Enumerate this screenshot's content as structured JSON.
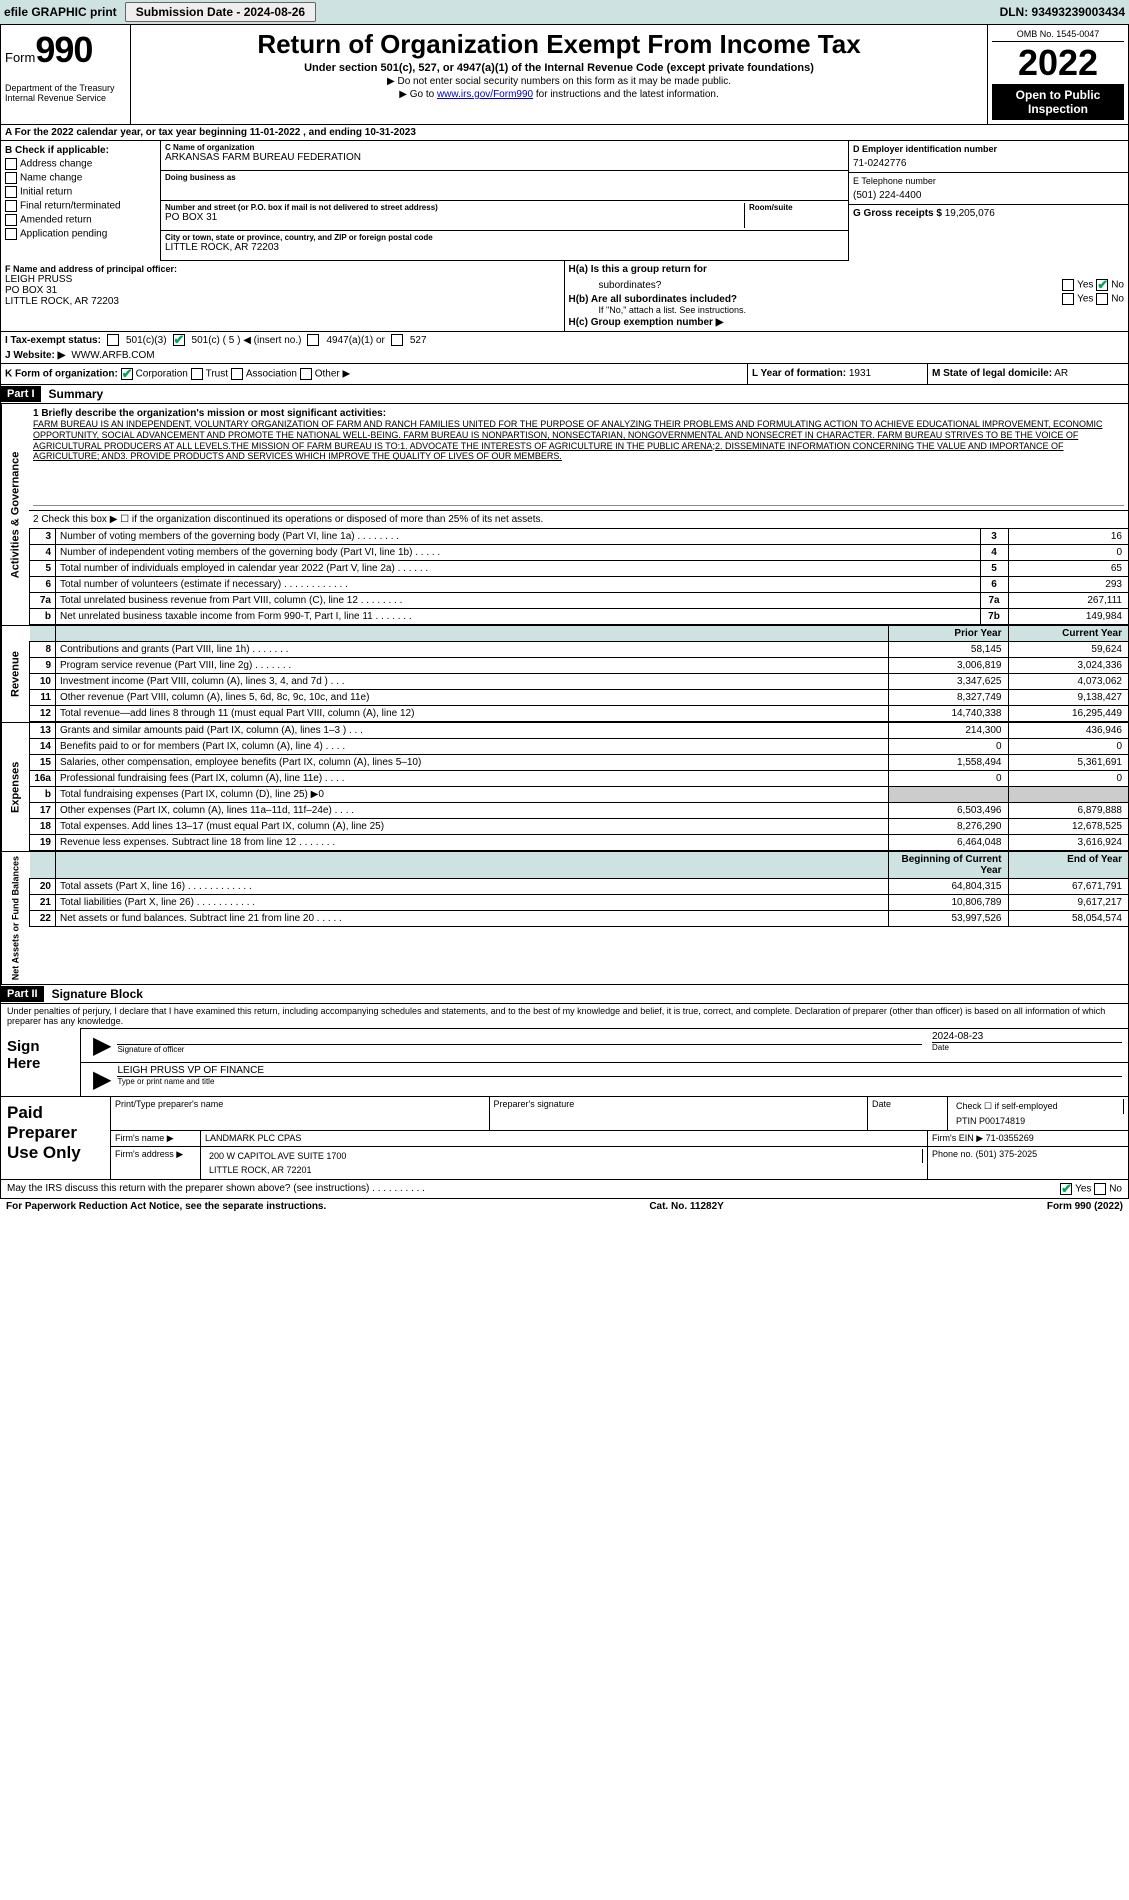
{
  "topbar": {
    "efile_label": "efile GRAPHIC print",
    "submission_label": "Submission Date - 2024-08-26",
    "dln": "DLN: 93493239003434"
  },
  "header": {
    "form_label": "Form",
    "form_number": "990",
    "dept": "Department of the Treasury\nInternal Revenue Service",
    "title": "Return of Organization Exempt From Income Tax",
    "subtitle": "Under section 501(c), 527, or 4947(a)(1) of the Internal Revenue Code (except private foundations)",
    "note1": "▶ Do not enter social security numbers on this form as it may be made public.",
    "note2": "▶ Go to www.irs.gov/Form990 for instructions and the latest information.",
    "link": "www.irs.gov/Form990",
    "omb": "OMB No. 1545-0047",
    "year": "2022",
    "open": "Open to Public Inspection"
  },
  "periodA": "A For the 2022 calendar year, or tax year beginning 11-01-2022   , and ending 10-31-2023",
  "boxB": {
    "title": "B Check if applicable:",
    "items": [
      "Address change",
      "Name change",
      "Initial return",
      "Final return/terminated",
      "Amended return",
      "Application pending"
    ]
  },
  "boxC": {
    "lbl_name": "C Name of organization",
    "name": "ARKANSAS FARM BUREAU FEDERATION",
    "lbl_dba": "Doing business as",
    "dba": "",
    "lbl_street": "Number and street (or P.O. box if mail is not delivered to street address)",
    "street": "PO BOX 31",
    "lbl_room": "Room/suite",
    "room": "",
    "lbl_city": "City or town, state or province, country, and ZIP or foreign postal code",
    "city": "LITTLE ROCK, AR  72203"
  },
  "boxD": {
    "lbl": "D Employer identification number",
    "val": "71-0242776"
  },
  "boxE": {
    "lbl": "E Telephone number",
    "val": "(501) 224-4400"
  },
  "boxG": {
    "lbl": "G Gross receipts $",
    "val": "19,205,076"
  },
  "boxF": {
    "lbl": "F  Name and address of principal officer:",
    "name": "LEIGH PRUSS",
    "addr1": "PO BOX 31",
    "addr2": "LITTLE ROCK, AR  72203"
  },
  "boxH": {
    "ha_lbl": "H(a)  Is this a group return for",
    "ha_lbl2": "subordinates?",
    "ha_yes": "Yes",
    "ha_no": "No",
    "hb_lbl": "H(b)  Are all subordinates included?",
    "hb_note": "If \"No,\" attach a list. See instructions.",
    "hc_lbl": "H(c)  Group exemption number ▶"
  },
  "lineI": {
    "lbl": "I   Tax-exempt status:",
    "c3": "501(c)(3)",
    "c5": "501(c) ( 5 ) ◀ (insert no.)",
    "c4947": "4947(a)(1) or",
    "c527": "527"
  },
  "lineJ": {
    "lbl": "J   Website: ▶",
    "val": "WWW.ARFB.COM"
  },
  "lineK": {
    "lbl": "K Form of organization:",
    "opts": [
      "Corporation",
      "Trust",
      "Association",
      "Other ▶"
    ]
  },
  "lineL": {
    "lbl": "L Year of formation:",
    "val": "1931"
  },
  "lineM": {
    "lbl": "M State of legal domicile:",
    "val": "AR"
  },
  "part1": {
    "hdr": "Part I",
    "title": "Summary",
    "q1_lbl": "1   Briefly describe the organization's mission or most significant activities:",
    "mission": "FARM BUREAU IS AN INDEPENDENT, VOLUNTARY ORGANIZATION OF FARM AND RANCH FAMILIES UNITED FOR THE PURPOSE OF ANALYZING THEIR PROBLEMS AND FORMULATING ACTION TO ACHIEVE EDUCATIONAL IMPROVEMENT, ECONOMIC OPPORTUNITY, SOCIAL ADVANCEMENT AND PROMOTE THE NATIONAL WELL-BEING. FARM BUREAU IS NONPARTISON, NONSECTARIAN, NONGOVERNMENTAL AND NONSECRET IN CHARACTER. FARM BUREAU STRIVES TO BE THE VOICE OF AGRICULTURAL PRODUCERS AT ALL LEVELS.THE MISSION OF FARM BUREAU IS TO:1. ADVOCATE THE INTERESTS OF AGRICULTURE IN THE PUBLIC ARENA;2. DISSEMINATE INFORMATION CONCERNING THE VALUE AND IMPORTANCE OF AGRICULTURE; AND3. PROVIDE PRODUCTS AND SERVICES WHICH IMPROVE THE QUALITY OF LIVES OF OUR MEMBERS.",
    "q2": "2   Check this box ▶ ☐ if the organization discontinued its operations or disposed of more than 25% of its net assets.",
    "rows_ag": [
      {
        "n": "3",
        "t": "Number of voting members of the governing body (Part VI, line 1a)   .   .   .   .   .   .   .   .",
        "r": "3",
        "v": "16"
      },
      {
        "n": "4",
        "t": "Number of independent voting members of the governing body (Part VI, line 1b)   .   .   .   .   .",
        "r": "4",
        "v": "0"
      },
      {
        "n": "5",
        "t": "Total number of individuals employed in calendar year 2022 (Part V, line 2a)   .   .   .   .   .   .",
        "r": "5",
        "v": "65"
      },
      {
        "n": "6",
        "t": "Total number of volunteers (estimate if necessary)   .   .   .   .   .   .   .   .   .   .   .   .",
        "r": "6",
        "v": "293"
      },
      {
        "n": "7a",
        "t": "Total unrelated business revenue from Part VIII, column (C), line 12   .   .   .   .   .   .   .   .",
        "r": "7a",
        "v": "267,111"
      },
      {
        "n": "b",
        "t": "Net unrelated business taxable income from Form 990-T, Part I, line 11   .   .   .   .   .   .   .",
        "r": "7b",
        "v": "149,984"
      }
    ],
    "prior_label": "Prior Year",
    "curr_label": "Current Year",
    "rows_rev": [
      {
        "n": "8",
        "t": "Contributions and grants (Part VIII, line 1h)   .   .   .   .   .   .   .",
        "p": "58,145",
        "c": "59,624"
      },
      {
        "n": "9",
        "t": "Program service revenue (Part VIII, line 2g)   .   .   .   .   .   .   .",
        "p": "3,006,819",
        "c": "3,024,336"
      },
      {
        "n": "10",
        "t": "Investment income (Part VIII, column (A), lines 3, 4, and 7d )   .   .   .",
        "p": "3,347,625",
        "c": "4,073,062"
      },
      {
        "n": "11",
        "t": "Other revenue (Part VIII, column (A), lines 5, 6d, 8c, 9c, 10c, and 11e)",
        "p": "8,327,749",
        "c": "9,138,427"
      },
      {
        "n": "12",
        "t": "Total revenue—add lines 8 through 11 (must equal Part VIII, column (A), line 12)",
        "p": "14,740,338",
        "c": "16,295,449"
      }
    ],
    "rows_exp": [
      {
        "n": "13",
        "t": "Grants and similar amounts paid (Part IX, column (A), lines 1–3 )   .   .   .",
        "p": "214,300",
        "c": "436,946"
      },
      {
        "n": "14",
        "t": "Benefits paid to or for members (Part IX, column (A), line 4)   .   .   .   .",
        "p": "0",
        "c": "0"
      },
      {
        "n": "15",
        "t": "Salaries, other compensation, employee benefits (Part IX, column (A), lines 5–10)",
        "p": "1,558,494",
        "c": "5,361,691"
      },
      {
        "n": "16a",
        "t": "Professional fundraising fees (Part IX, column (A), line 11e)   .   .   .   .",
        "p": "0",
        "c": "0"
      },
      {
        "n": "b",
        "t": "Total fundraising expenses (Part IX, column (D), line 25) ▶0",
        "p": "",
        "c": "",
        "grey": true
      },
      {
        "n": "17",
        "t": "Other expenses (Part IX, column (A), lines 11a–11d, 11f–24e)   .   .   .   .",
        "p": "6,503,496",
        "c": "6,879,888"
      },
      {
        "n": "18",
        "t": "Total expenses. Add lines 13–17 (must equal Part IX, column (A), line 25)",
        "p": "8,276,290",
        "c": "12,678,525"
      },
      {
        "n": "19",
        "t": "Revenue less expenses. Subtract line 18 from line 12   .   .   .   .   .   .   .",
        "p": "6,464,048",
        "c": "3,616,924"
      }
    ],
    "begin_label": "Beginning of Current Year",
    "end_label": "End of Year",
    "rows_net": [
      {
        "n": "20",
        "t": "Total assets (Part X, line 16)   .   .   .   .   .   .   .   .   .   .   .   .",
        "p": "64,804,315",
        "c": "67,671,791"
      },
      {
        "n": "21",
        "t": "Total liabilities (Part X, line 26)   .   .   .   .   .   .   .   .   .   .   .",
        "p": "10,806,789",
        "c": "9,617,217"
      },
      {
        "n": "22",
        "t": "Net assets or fund balances. Subtract line 21 from line 20   .   .   .   .   .",
        "p": "53,997,526",
        "c": "58,054,574"
      }
    ]
  },
  "vlabels": {
    "ag": "Activities & Governance",
    "rev": "Revenue",
    "exp": "Expenses",
    "net": "Net Assets or Fund Balances"
  },
  "part2": {
    "hdr": "Part II",
    "title": "Signature Block",
    "decl": "Under penalties of perjury, I declare that I have examined this return, including accompanying schedules and statements, and to the best of my knowledge and belief, it is true, correct, and complete. Declaration of preparer (other than officer) is based on all information of which preparer has any knowledge.",
    "sign_here": "Sign Here",
    "sig_officer": "Signature of officer",
    "sig_date_lbl": "Date",
    "sig_date": "2024-08-23",
    "sig_name": "LEIGH PRUSS VP OF FINANCE",
    "sig_name_lbl": "Type or print name and title"
  },
  "paid": {
    "title": "Paid Preparer Use Only",
    "h1": "Print/Type preparer's name",
    "h2": "Preparer's signature",
    "h3": "Date",
    "h4a": "Check ☐ if self-employed",
    "h4b": "PTIN",
    "ptin": "P00174819",
    "firm_lbl": "Firm's name     ▶",
    "firm": "LANDMARK PLC CPAS",
    "ein_lbl": "Firm's EIN ▶",
    "ein": "71-0355269",
    "addr_lbl": "Firm's address ▶",
    "addr1": "200 W CAPITOL AVE SUITE 1700",
    "addr2": "LITTLE ROCK, AR  72201",
    "phone_lbl": "Phone no.",
    "phone": "(501) 375-2025"
  },
  "discuss": {
    "q": "May the IRS discuss this return with the preparer shown above? (see instructions)   .   .   .   .   .   .   .   .   .   .",
    "yes": "Yes",
    "no": "No"
  },
  "footer": {
    "pra": "For Paperwork Reduction Act Notice, see the separate instructions.",
    "cat": "Cat. No. 11282Y",
    "form": "Form 990 (2022)"
  }
}
